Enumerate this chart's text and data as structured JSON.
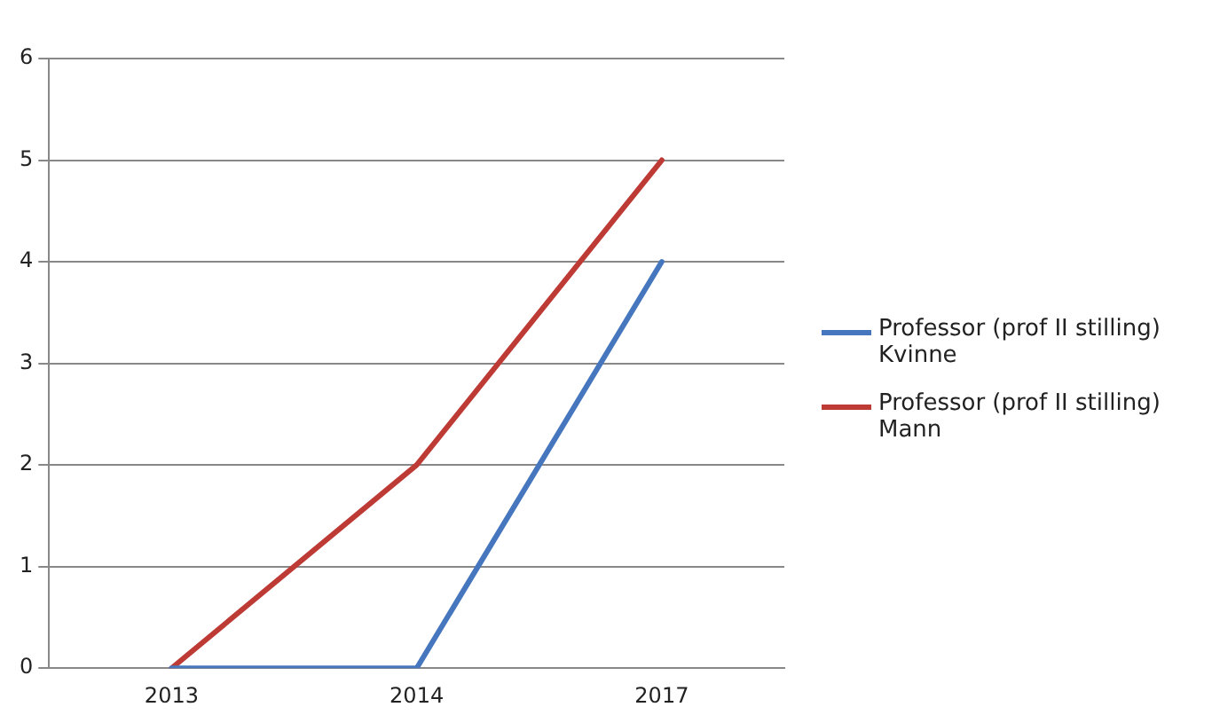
{
  "chart_data": {
    "type": "line",
    "categories": [
      "2013",
      "2014",
      "2017"
    ],
    "series": [
      {
        "name": "Professor (prof II stilling) Kvinne",
        "color": "#4677be",
        "values": [
          0,
          0,
          4
        ]
      },
      {
        "name": "Professor (prof II stilling) Mann",
        "color": "#be3a35",
        "values": [
          0,
          2,
          5
        ]
      }
    ],
    "ylim": [
      0,
      6
    ],
    "yticks": [
      0,
      1,
      2,
      3,
      4,
      5,
      6
    ],
    "grid": "y",
    "legend": "right",
    "marker": "none"
  }
}
